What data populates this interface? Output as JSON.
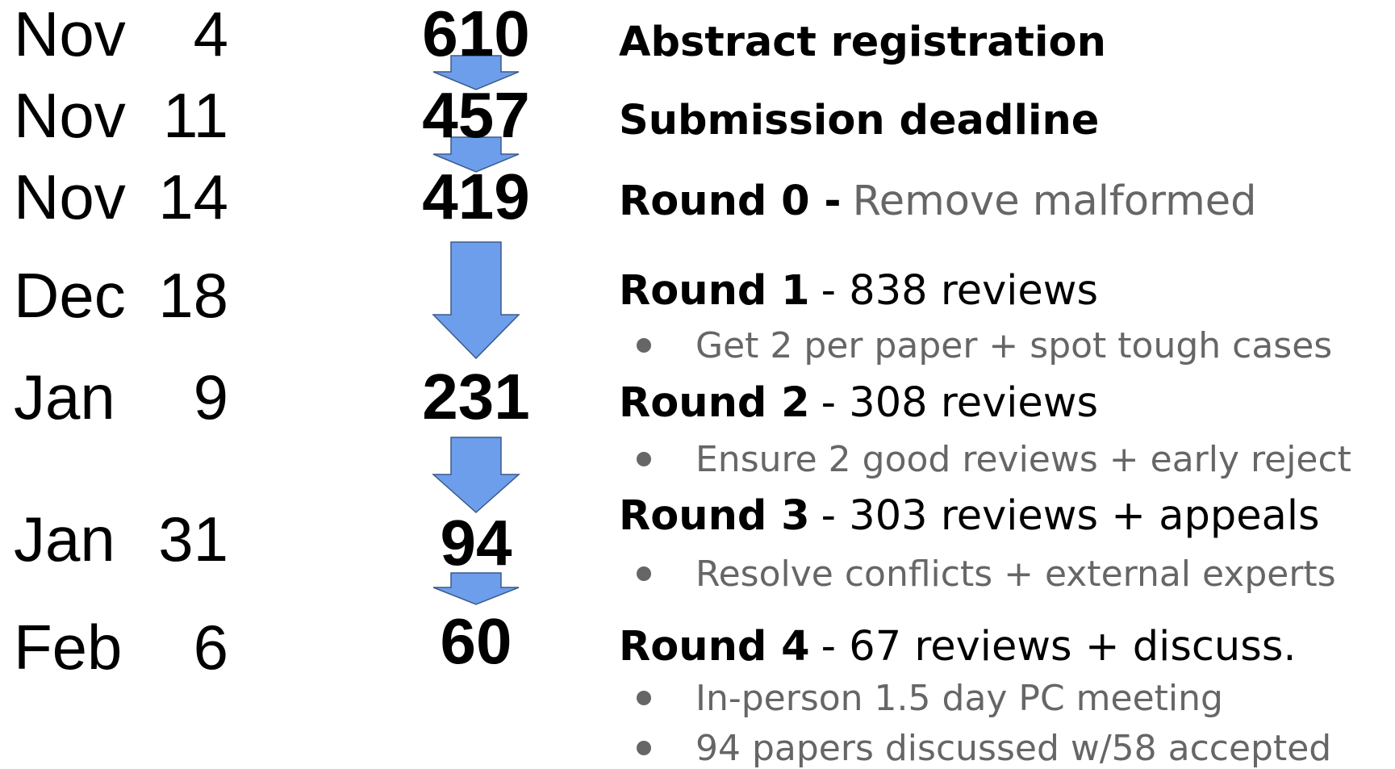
{
  "rows": [
    {
      "month": "Nov",
      "day": "4",
      "count": 610,
      "title": "Abstract registration"
    },
    {
      "month": "Nov",
      "day": "11",
      "count": 457,
      "title": "Submission deadline"
    },
    {
      "month": "Nov",
      "day": "14",
      "count": 419,
      "title": "Round 0 -",
      "detail": "Remove malformed"
    },
    {
      "month": "Dec",
      "day": "18",
      "title": "Round 1",
      "detail": "- 838 reviews",
      "bullets": [
        "Get 2 per paper + spot tough cases"
      ]
    },
    {
      "month": "Jan",
      "day": "9",
      "count": 231,
      "title": "Round 2",
      "detail": "- 308 reviews",
      "bullets": [
        "Ensure 2 good reviews + early reject"
      ]
    },
    {
      "month": "Jan",
      "day": "31",
      "count": 94,
      "title": "Round 3",
      "detail": "- 303 reviews + appeals",
      "bullets": [
        "Resolve conflicts + external experts"
      ]
    },
    {
      "month": "Feb",
      "day": "6",
      "count": 60,
      "title": "Round 4",
      "detail": "- 67 reviews + discuss.",
      "bullets": [
        "In-person 1.5 day PC meeting",
        "94 papers discussed w/58 accepted"
      ]
    }
  ]
}
